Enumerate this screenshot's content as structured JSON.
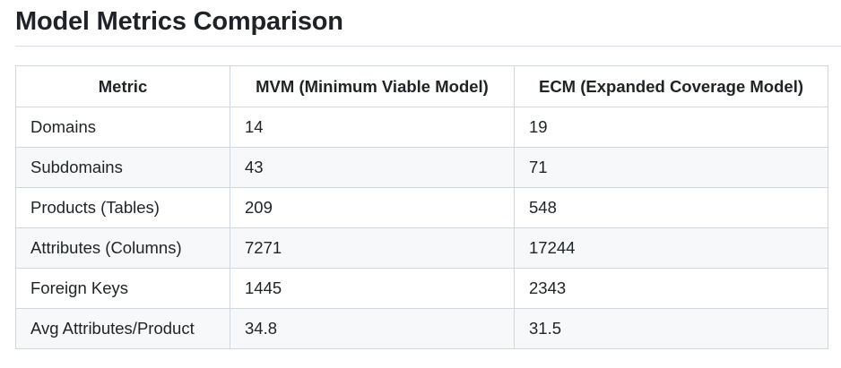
{
  "title": "Model Metrics Comparison",
  "table": {
    "headers": [
      "Metric",
      "MVM (Minimum Viable Model)",
      "ECM (Expanded Coverage Model)"
    ],
    "rows": [
      [
        "Domains",
        "14",
        "19"
      ],
      [
        "Subdomains",
        "43",
        "71"
      ],
      [
        "Products (Tables)",
        "209",
        "548"
      ],
      [
        "Attributes (Columns)",
        "7271",
        "17244"
      ],
      [
        "Foreign Keys",
        "1445",
        "2343"
      ],
      [
        "Avg Attributes/Product",
        "34.8",
        "31.5"
      ]
    ]
  }
}
